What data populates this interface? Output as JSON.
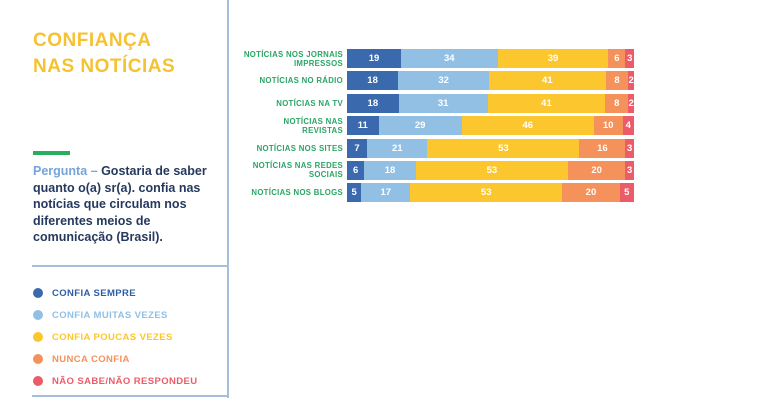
{
  "page": {
    "title_line1": "CONFIANÇA",
    "title_line2": "NAS NOTÍCIAS",
    "question_label": "Pergunta –",
    "question_text": " Gostaria de saber quanto o(a) sr(a). confia nas notícias que circulam nos diferentes meios de comunicação (Brasil)."
  },
  "colors": {
    "title_yellow": "#F6C232",
    "label_green": "#2BA566",
    "dash_green": "#27AE60",
    "question_navy": "#25395E",
    "question_label_blue": "#76A3D8",
    "divider_blue": "#A6BED9",
    "confia_sempre": "#3B69AE",
    "confia_muitas_vezes": "#92C0E5",
    "confia_poucas_vezes": "#FCC72E",
    "nunca_confia": "#F5915A",
    "nao_sabe": "#EC5C68"
  },
  "legend": {
    "items": [
      {
        "label": "CONFIA SEMPRE",
        "color": "#3B69AE",
        "text_color": "#2E5CA6"
      },
      {
        "label": "CONFIA MUITAS VEZES",
        "color": "#92C0E5",
        "text_color": "#92C0E5"
      },
      {
        "label": "CONFIA POUCAS VEZES",
        "color": "#FCC72E",
        "text_color": "#FCC72E"
      },
      {
        "label": "NUNCA CONFIA",
        "color": "#F5915A",
        "text_color": "#F5915A"
      },
      {
        "label": "NÃO SABE/NÃO RESPONDEU",
        "color": "#EC5C68",
        "text_color": "#EC5C68"
      }
    ]
  },
  "chart_data": {
    "type": "bar",
    "stacked": true,
    "orientation": "horizontal",
    "unit": "percent",
    "xlim": [
      0,
      100
    ],
    "grid": false,
    "legend_position": "left-panel-bottom",
    "categories": [
      "NOTÍCIAS NOS JORNAIS IMPRESSOS",
      "NOTÍCIAS NO RÁDIO",
      "NOTÍCIAS NA TV",
      "NOTÍCIAS NAS REVISTAS",
      "NOTÍCIAS NOS SITES",
      "NOTÍCIAS NAS REDES SOCIAIS",
      "NOTÍCIAS NOS BLOGS"
    ],
    "series": [
      {
        "name": "CONFIA SEMPRE",
        "color": "#3B69AE",
        "values": [
          19,
          18,
          18,
          11,
          7,
          6,
          5
        ]
      },
      {
        "name": "CONFIA MUITAS VEZES",
        "color": "#92C0E5",
        "values": [
          34,
          32,
          31,
          29,
          21,
          18,
          17
        ]
      },
      {
        "name": "CONFIA POUCAS VEZES",
        "color": "#FCC72E",
        "values": [
          39,
          41,
          41,
          46,
          53,
          53,
          53
        ]
      },
      {
        "name": "NUNCA CONFIA",
        "color": "#F5915A",
        "values": [
          6,
          8,
          8,
          10,
          16,
          20,
          20
        ]
      },
      {
        "name": "NÃO SABE/NÃO RESPONDEU",
        "color": "#EC5C68",
        "values": [
          3,
          2,
          2,
          4,
          3,
          3,
          5
        ]
      }
    ]
  }
}
